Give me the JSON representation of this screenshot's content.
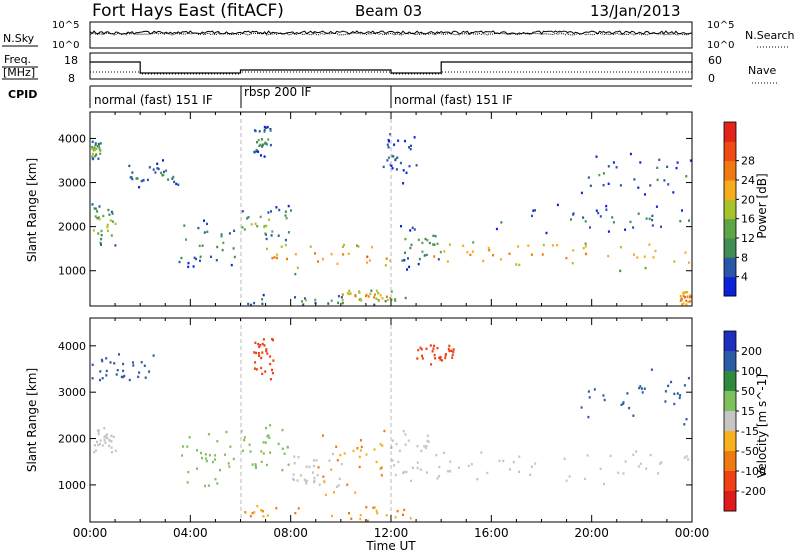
{
  "header": {
    "station": "Fort Hays East (fitACF)",
    "beam": "Beam 03",
    "date": "13/Jan/2013"
  },
  "noise_panel": {
    "left_label": "N.Sky",
    "left_ticks": [
      "10^5",
      "10^0"
    ],
    "right_label": "N.Search",
    "right_ticks": [
      "10^5",
      "10^0"
    ]
  },
  "freq_panel": {
    "left_label_top": "Freq.",
    "left_label_bottom": "[MHz]",
    "left_ticks": [
      "18",
      "8"
    ],
    "right_label": "Nave",
    "right_ticks": [
      "60",
      "0"
    ]
  },
  "cpid": {
    "label": "CPID",
    "segments": [
      {
        "text": "normal (fast) 151 IF",
        "start_h": 0,
        "end_h": 6
      },
      {
        "text": "rbsp 200 IF",
        "start_h": 6,
        "end_h": 12
      },
      {
        "text": "normal (fast) 151 IF",
        "start_h": 12,
        "end_h": 24
      }
    ]
  },
  "x_axis": {
    "label": "Time UT",
    "ticks": [
      "00:00",
      "04:00",
      "08:00",
      "12:00",
      "16:00",
      "20:00",
      "00:00"
    ]
  },
  "chart_data": [
    {
      "type": "heatmap",
      "quantity": "power",
      "ylabel": "Slant Range [km]",
      "yticks": [
        "1000",
        "2000",
        "3000",
        "4000"
      ],
      "ylim": [
        200,
        4600
      ],
      "xlim_hours": [
        0,
        24
      ],
      "colorbar": {
        "label": "Power [dB]",
        "ticks": [
          "4",
          "8",
          "12",
          "16",
          "20",
          "24",
          "28"
        ],
        "colors": [
          "#0b22d8",
          "#2a55a8",
          "#3f8c55",
          "#5fa545",
          "#a8c22c",
          "#f5ac1f",
          "#f07a12",
          "#ef4a14",
          "#e2231b"
        ]
      },
      "scatter_regions": [
        {
          "t0": 13.6,
          "t1": 24.0,
          "r0": 1000,
          "r1": 1800,
          "level": 20
        },
        {
          "t0": 7.0,
          "t1": 12.0,
          "r0": 900,
          "r1": 1800,
          "level": 20
        },
        {
          "t0": 6.0,
          "t1": 8.0,
          "r0": 1700,
          "r1": 2500,
          "level": 12
        },
        {
          "t0": 0.0,
          "t1": 1.0,
          "r0": 1500,
          "r1": 2600,
          "level": 12
        },
        {
          "t0": 3.5,
          "t1": 5.8,
          "r0": 1000,
          "r1": 2300,
          "level": 8
        },
        {
          "t0": 12.3,
          "t1": 14.0,
          "r0": 1000,
          "r1": 2200,
          "level": 8
        },
        {
          "t0": 16.0,
          "t1": 24.0,
          "r0": 1800,
          "r1": 2600,
          "level": 4
        },
        {
          "t0": 19.5,
          "t1": 24.0,
          "r0": 2600,
          "r1": 3800,
          "level": 4
        },
        {
          "t0": 0.0,
          "t1": 0.4,
          "r0": 3500,
          "r1": 4000,
          "level": 12
        },
        {
          "t0": 1.5,
          "t1": 3.5,
          "r0": 2800,
          "r1": 3600,
          "level": 4
        },
        {
          "t0": 6.5,
          "t1": 7.2,
          "r0": 3600,
          "r1": 4400,
          "level": 8
        },
        {
          "t0": 11.5,
          "t1": 13.0,
          "r0": 3000,
          "r1": 4200,
          "level": 4
        },
        {
          "t0": 6.0,
          "t1": 13.0,
          "r0": 200,
          "r1": 500,
          "level": 8
        },
        {
          "t0": 10.0,
          "t1": 12.0,
          "r0": 300,
          "r1": 600,
          "level": 20
        },
        {
          "t0": 23.5,
          "t1": 24.0,
          "r0": 200,
          "r1": 600,
          "level": 24
        }
      ]
    },
    {
      "type": "heatmap",
      "quantity": "velocity",
      "ylabel": "Slant Range [km]",
      "yticks": [
        "1000",
        "2000",
        "3000",
        "4000"
      ],
      "ylim": [
        200,
        4600
      ],
      "xlim_hours": [
        0,
        24
      ],
      "colorbar": {
        "label": "Velocity [m s^-1]",
        "ticks": [
          "200",
          "100",
          "50",
          "15",
          "-15",
          "-50",
          "-100",
          "-200"
        ],
        "colors": [
          "#1f2fbd",
          "#2c5aa6",
          "#2f8a3d",
          "#7ec05b",
          "#c5c5c5",
          "#f7b11f",
          "#f07a12",
          "#ee3f15",
          "#df1a1a"
        ]
      },
      "scatter_regions": [
        {
          "t0": 13.6,
          "t1": 24.0,
          "r0": 1000,
          "r1": 1800,
          "level": 0
        },
        {
          "t0": 8.0,
          "t1": 10.0,
          "r0": 900,
          "r1": 1800,
          "level": 0
        },
        {
          "t0": 9.0,
          "t1": 12.0,
          "r0": 700,
          "r1": 2200,
          "level": -50
        },
        {
          "t0": 6.0,
          "t1": 8.0,
          "r0": 1300,
          "r1": 2400,
          "level": 30
        },
        {
          "t0": 0.0,
          "t1": 1.0,
          "r0": 1700,
          "r1": 2300,
          "level": 0
        },
        {
          "t0": 3.5,
          "t1": 5.8,
          "r0": 800,
          "r1": 2200,
          "level": 30
        },
        {
          "t0": 12.0,
          "t1": 14.0,
          "r0": 1000,
          "r1": 2200,
          "level": 0
        },
        {
          "t0": 0.0,
          "t1": 2.5,
          "r0": 3200,
          "r1": 3900,
          "level": 150
        },
        {
          "t0": 19.5,
          "t1": 24.0,
          "r0": 2300,
          "r1": 3600,
          "level": 150
        },
        {
          "t0": 6.5,
          "t1": 7.3,
          "r0": 3200,
          "r1": 4400,
          "level": -150
        },
        {
          "t0": 13.0,
          "t1": 14.5,
          "r0": 3600,
          "r1": 4100,
          "level": -150
        },
        {
          "t0": 6.0,
          "t1": 13.0,
          "r0": 200,
          "r1": 600,
          "level": -50
        }
      ]
    }
  ]
}
